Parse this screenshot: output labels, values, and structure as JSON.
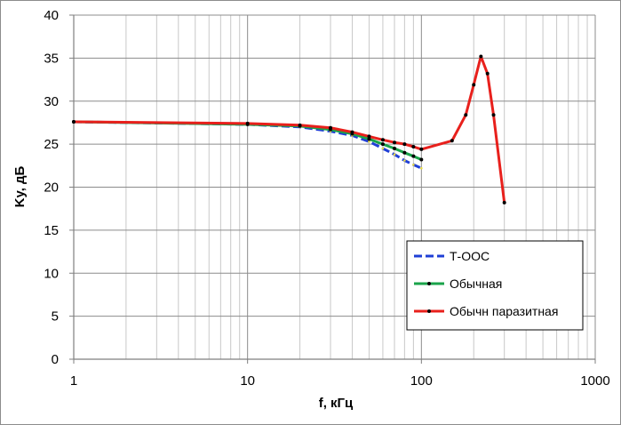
{
  "chart_data": {
    "type": "line",
    "xscale": "log",
    "xlim": [
      1,
      1000
    ],
    "ylim": [
      0,
      40
    ],
    "xticks": [
      1,
      10,
      100,
      1000
    ],
    "xtick_labels": [
      "1",
      "10",
      "100",
      "1000"
    ],
    "yticks": [
      0,
      5,
      10,
      15,
      20,
      25,
      30,
      35,
      40
    ],
    "ytick_labels": [
      "0",
      "5",
      "10",
      "15",
      "20",
      "25",
      "30",
      "35",
      "40"
    ],
    "xlabel": "f, кГц",
    "ylabel": "Kу, дБ",
    "grid": true,
    "legend_position": "bottom-right",
    "series": [
      {
        "name": "Т-ООС",
        "color": "#1f3fd6",
        "style": "dash",
        "x": [
          1,
          10,
          20,
          30,
          40,
          50,
          60,
          70,
          80,
          90,
          100
        ],
        "y": [
          27.6,
          27.3,
          27.0,
          26.5,
          26.0,
          25.3,
          24.5,
          23.8,
          23.1,
          22.6,
          22.2
        ]
      },
      {
        "name": "Обычная",
        "color": "#1aa34a",
        "style": "solid-markers",
        "x": [
          1,
          10,
          20,
          30,
          40,
          50,
          60,
          70,
          80,
          90,
          100
        ],
        "y": [
          27.6,
          27.3,
          27.1,
          26.7,
          26.2,
          25.6,
          25.0,
          24.5,
          24.0,
          23.6,
          23.2
        ]
      },
      {
        "name": "Обычн паразитная",
        "color": "#e8201c",
        "style": "solid-markers",
        "x": [
          1,
          10,
          20,
          30,
          40,
          50,
          60,
          70,
          80,
          90,
          100,
          150,
          180,
          200,
          220,
          240,
          260,
          300
        ],
        "y": [
          27.6,
          27.4,
          27.2,
          26.9,
          26.4,
          25.9,
          25.5,
          25.2,
          25.0,
          24.7,
          24.4,
          25.4,
          28.4,
          31.9,
          35.2,
          33.2,
          28.4,
          18.2
        ]
      }
    ]
  }
}
